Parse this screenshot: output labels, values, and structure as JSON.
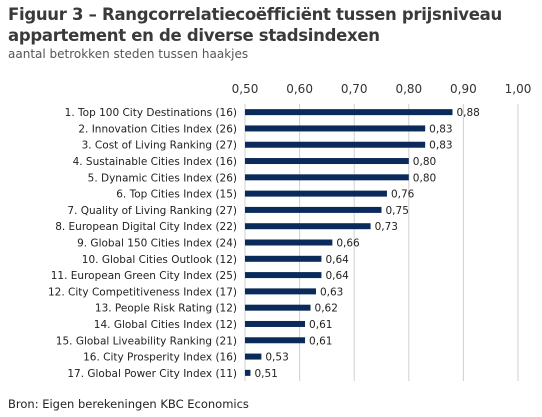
{
  "title": "Figuur 3 – Rangcorrelatiecoëfficiënt tussen prijsniveau appartement en de diverse stadsindexen",
  "subtitle": "aantal betrokken steden tussen haakjes",
  "source": "Bron:  Eigen berekeningen KBC Economics",
  "colors": {
    "bar": "#0b2a5c",
    "grid": "#d0d0d0"
  },
  "chart_data": {
    "type": "bar",
    "orientation": "horizontal",
    "title": "Figuur 3 – Rangcorrelatiecoëfficiënt tussen prijsniveau appartement en de diverse stadsindexen",
    "subtitle": "aantal betrokken steden tussen haakjes",
    "xlim": [
      0.5,
      1.0
    ],
    "ticks": [
      0.5,
      0.6,
      0.7,
      0.8,
      0.9,
      1.0
    ],
    "tick_labels": [
      "0,50",
      "0,60",
      "0,70",
      "0,80",
      "0,90",
      "1,00"
    ],
    "categories": [
      "1. Top 100 City Destinations (16)",
      "2. Innovation Cities Index (26)",
      "3. Cost of Living Ranking (27)",
      "4. Sustainable Cities Index (16)",
      "5. Dynamic Cities Index (26)",
      "6. Top Cities Index (15)",
      "7. Quality of Living Ranking (27)",
      "8. European Digital City Index (22)",
      "9. Global 150 Cities Index (24)",
      "10. Global Cities Outlook (12)",
      "11. European Green City Index (25)",
      "12. City Competitiveness Index (17)",
      "13. People Risk Rating (12)",
      "14. Global Cities Index (12)",
      "15. Global Liveability Ranking (21)",
      "16. City Prosperity Index (16)",
      "17. Global Power City Index (11)"
    ],
    "values": [
      0.88,
      0.83,
      0.83,
      0.8,
      0.8,
      0.76,
      0.75,
      0.73,
      0.66,
      0.64,
      0.64,
      0.63,
      0.62,
      0.61,
      0.61,
      0.53,
      0.51
    ],
    "value_labels": [
      "0,88",
      "0,83",
      "0,83",
      "0,80",
      "0,80",
      "0,76",
      "0,75",
      "0,73",
      "0,66",
      "0,64",
      "0,64",
      "0,63",
      "0,62",
      "0,61",
      "0,61",
      "0,53",
      "0,51"
    ],
    "grid": true,
    "legend": "none"
  }
}
